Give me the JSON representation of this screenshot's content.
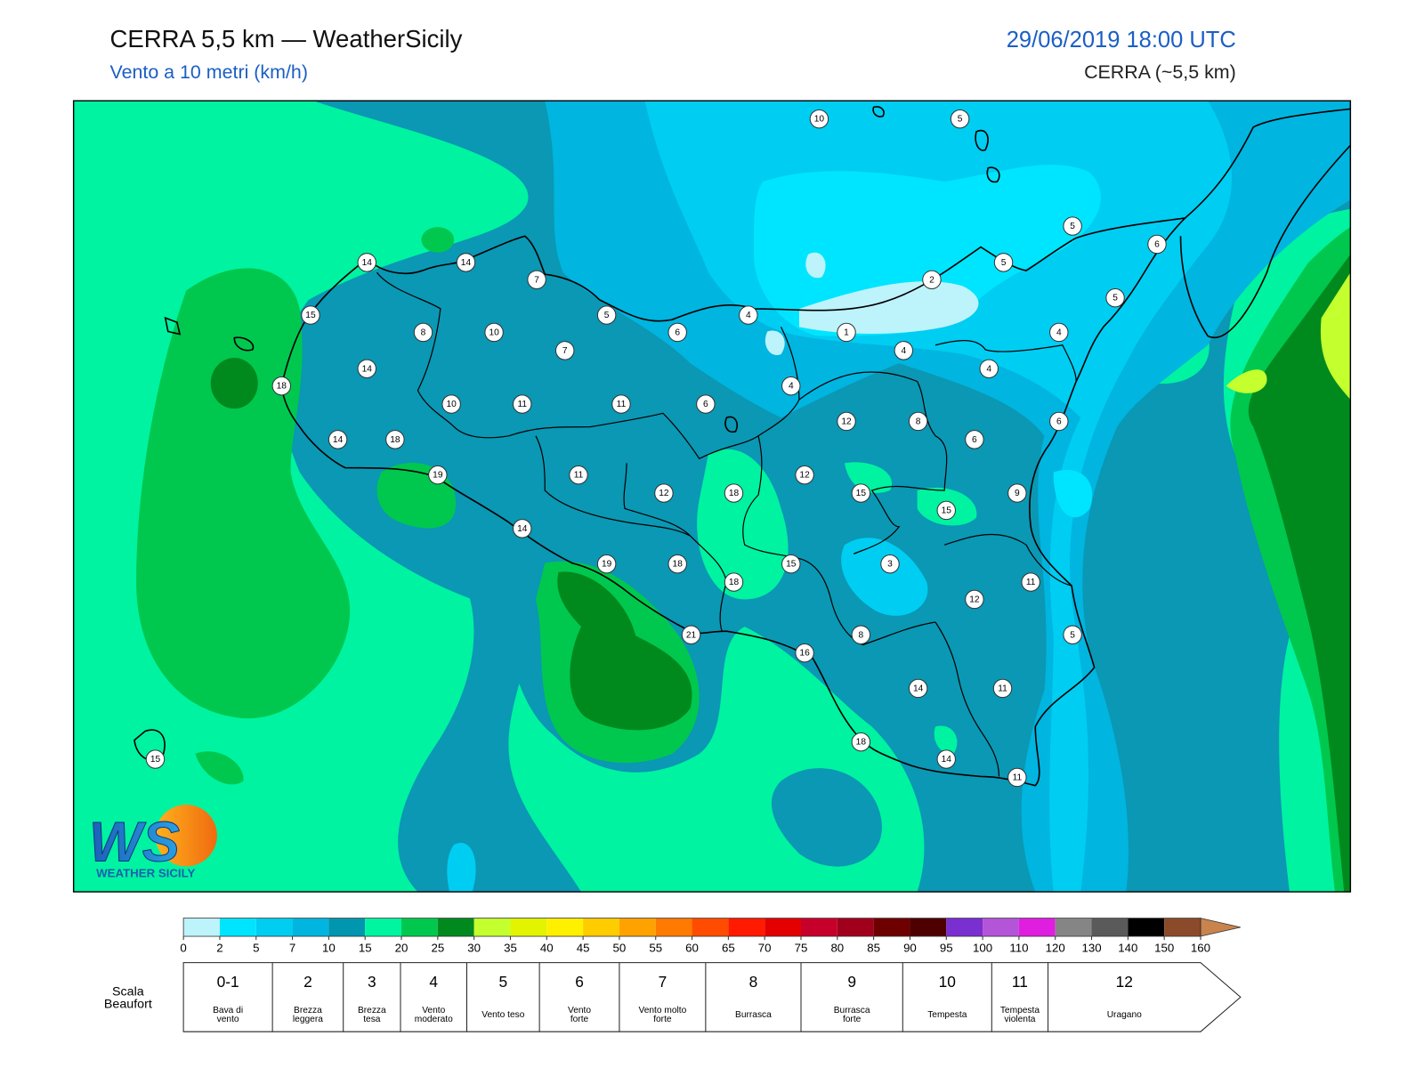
{
  "header": {
    "title": "CERRA 5,5 km — WeatherSicily",
    "subtitle": "Vento a 10 metri (km/h)",
    "datetime": "29/06/2019 18:00 UTC",
    "model": "CERRA (~5,5 km)"
  },
  "logo": {
    "mark": "WS",
    "text": "WEATHER SICILY"
  },
  "stations": [
    10,
    5,
    5,
    6,
    14,
    14,
    7,
    2,
    5,
    5,
    15,
    5,
    4,
    8,
    10,
    6,
    1,
    4,
    7,
    4,
    4,
    14,
    18,
    4,
    10,
    11,
    11,
    6,
    12,
    8,
    6,
    14,
    18,
    6,
    19,
    11,
    12,
    12,
    18,
    15,
    9,
    15,
    14,
    19,
    18,
    15,
    3,
    18,
    11,
    12,
    21,
    8,
    5,
    16,
    14,
    11,
    18,
    14,
    11,
    15
  ],
  "colorbar": {
    "bounds": [
      0,
      2,
      5,
      7,
      10,
      15,
      20,
      25,
      30,
      35,
      40,
      45,
      50,
      55,
      60,
      65,
      70,
      75,
      80,
      85,
      90,
      95,
      100,
      110,
      120,
      130,
      140,
      150,
      160
    ],
    "colors": [
      "#bdf3fb",
      "#00e5ff",
      "#00cdf2",
      "#00b5e0",
      "#0096b0",
      "#00f5a0",
      "#00c84e",
      "#008a1e",
      "#c4ff2e",
      "#e2f400",
      "#fff000",
      "#ffcc00",
      "#ffa200",
      "#ff7a00",
      "#ff4c00",
      "#ff1a00",
      "#e40000",
      "#c6002a",
      "#a0001c",
      "#6e0000",
      "#4e0000",
      "#7a2fd0",
      "#b454d8",
      "#e01ee0",
      "#858585",
      "#5a5a5a",
      "#000000",
      "#8b4a2a",
      "#c8844c"
    ]
  },
  "beaufort": {
    "label": [
      "Scala",
      "Beaufort"
    ],
    "levels": [
      {
        "force": "0-1",
        "name": [
          "Bava di",
          "vento"
        ]
      },
      {
        "force": "2",
        "name": [
          "Brezza",
          "leggera"
        ]
      },
      {
        "force": "3",
        "name": [
          "Brezza",
          "tesa"
        ]
      },
      {
        "force": "4",
        "name": [
          "Vento",
          "moderato"
        ]
      },
      {
        "force": "5",
        "name": [
          "Vento teso"
        ]
      },
      {
        "force": "6",
        "name": [
          "Vento",
          "forte"
        ]
      },
      {
        "force": "7",
        "name": [
          "Vento molto",
          "forte"
        ]
      },
      {
        "force": "8",
        "name": [
          "Burrasca"
        ]
      },
      {
        "force": "9",
        "name": [
          "Burrasca",
          "forte"
        ]
      },
      {
        "force": "10",
        "name": [
          "Tempesta"
        ]
      },
      {
        "force": "11",
        "name": [
          "Tempesta",
          "violenta"
        ]
      },
      {
        "force": "12",
        "name": [
          "Uragano"
        ]
      }
    ]
  }
}
